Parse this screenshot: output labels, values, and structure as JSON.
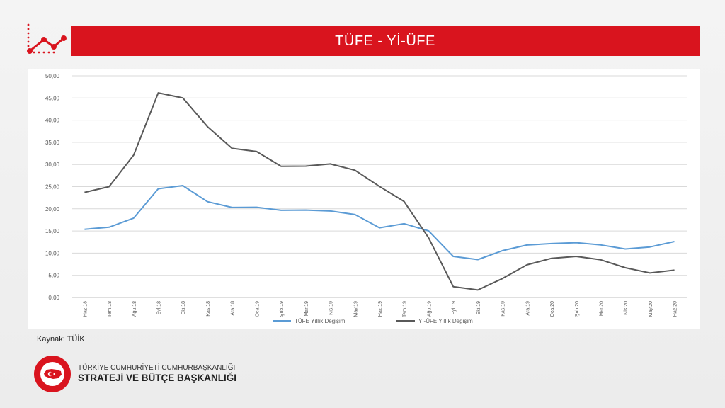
{
  "page": {
    "title": "TÜFE - Yİ-ÜFE",
    "source": "Kaynak: TÜİK",
    "org_line1": "TÜRKİYE CUMHURİYETİ CUMHURBAŞKANLIĞI",
    "org_line2": "STRATEJİ VE BÜTÇE BAŞKANLIĞI",
    "logo_text": "T.C. CUMHURBAŞKANLIĞI STRATEJİ VE BÜTÇE BAŞKANLIĞI",
    "accent_color": "#d9141e"
  },
  "chart_data": {
    "type": "line",
    "title": "",
    "xlabel": "",
    "ylabel": "",
    "ylim": [
      0,
      50
    ],
    "yticks": [
      "0,00",
      "5,00",
      "10,00",
      "15,00",
      "20,00",
      "25,00",
      "30,00",
      "35,00",
      "40,00",
      "45,00",
      "50,00"
    ],
    "grid": true,
    "legend_position": "bottom",
    "categories": [
      "Haz.18",
      "Tem.18",
      "Ağu.18",
      "Eyl.18",
      "Eki.18",
      "Kas.18",
      "Ara.18",
      "Oca.19",
      "Şub.19",
      "Mar.19",
      "Nis.19",
      "May.19",
      "Haz.19",
      "Tem.19",
      "Ağu.19",
      "Eyl.19",
      "Eki.19",
      "Kas.19",
      "Ara.19",
      "Oca.20",
      "Şub.20",
      "Mar.20",
      "Nis.20",
      "May.20",
      "Haz.20"
    ],
    "series": [
      {
        "name": "TÜFE Yıllık Değişim",
        "color": "#5b9bd5",
        "values": [
          15.39,
          15.85,
          17.9,
          24.52,
          25.24,
          21.62,
          20.3,
          20.35,
          19.67,
          19.71,
          19.5,
          18.71,
          15.72,
          16.65,
          15.01,
          9.26,
          8.55,
          10.56,
          11.84,
          12.15,
          12.37,
          11.86,
          10.94,
          11.39,
          12.62
        ]
      },
      {
        "name": "Yİ-ÜFE Yıllık Değişim",
        "color": "#595959",
        "values": [
          23.71,
          25.0,
          32.13,
          46.15,
          45.01,
          38.54,
          33.64,
          32.93,
          29.59,
          29.64,
          30.12,
          28.71,
          25.04,
          21.66,
          13.45,
          2.45,
          1.7,
          4.26,
          7.36,
          8.84,
          9.26,
          8.5,
          6.71,
          5.53,
          6.17
        ]
      }
    ]
  }
}
